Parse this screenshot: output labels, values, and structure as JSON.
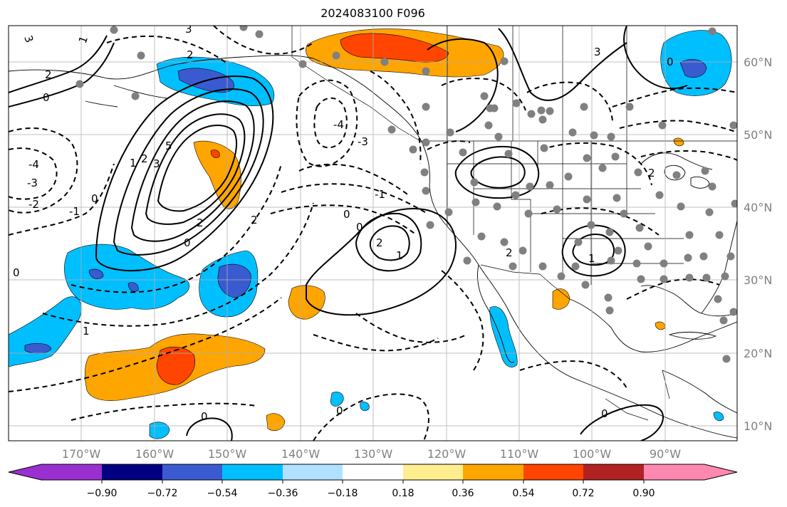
{
  "title": "2024083100 F096",
  "lat_labels": [
    "60°N",
    "50°N",
    "40°N",
    "30°N",
    "20°N",
    "10°N"
  ],
  "lon_labels": [
    "170°W",
    "160°W",
    "150°W",
    "140°W",
    "130°W",
    "120°W",
    "110°W",
    "100°W",
    "90°W"
  ],
  "colorbar": {
    "tick_labels": [
      "−0.90",
      "−0.72",
      "−0.54",
      "−0.36",
      "−0.18",
      "0.18",
      "0.36",
      "0.54",
      "0.72",
      "0.90"
    ],
    "colors": [
      "#9b30d0",
      "#000080",
      "#3a5bd0",
      "#00bfff",
      "#b0e2ff",
      "#ffffff",
      "#ffee90",
      "#ffa500",
      "#ff4500",
      "#b22222",
      "#ff88b0"
    ]
  },
  "contour_labels": [
    "3",
    "2",
    "1",
    "0",
    "-1",
    "-2",
    "-3",
    "-4",
    "5"
  ],
  "fill_colors": {
    "light_blue": "#00bfff",
    "mid_blue": "#3a5bd0",
    "orange": "#ffa500",
    "red_orange": "#ff4500",
    "marker_gray": "#808080"
  }
}
